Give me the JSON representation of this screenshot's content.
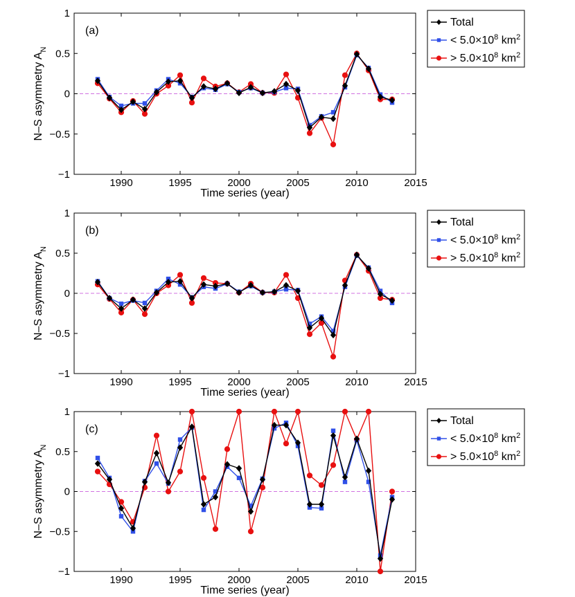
{
  "colors": {
    "total": "#000000",
    "small": "#3050e8",
    "large": "#e81010",
    "zero_line": "#d070e0"
  },
  "legend": {
    "total": "Total",
    "small_prefix": "< 5.0×10",
    "large_prefix": "> 5.0×10",
    "exponent": "8",
    "unit": " km",
    "unit_exponent": "2"
  },
  "chart_data": [
    {
      "type": "line",
      "panel": "(a)",
      "xlabel": "Time series (year)",
      "ylabel": "N–S asymmetry A",
      "ylabel_sub": "N",
      "xlim": [
        1986,
        2015
      ],
      "ylim": [
        -1,
        1
      ],
      "xticks": [
        1990,
        1995,
        2000,
        2005,
        2010,
        2015
      ],
      "yticks": [
        -1,
        -0.5,
        0,
        0.5,
        1
      ],
      "zero_line": true,
      "grid": false,
      "legend_placement": "outside-right",
      "x": [
        1988,
        1989,
        1990,
        1991,
        1992,
        1993,
        1994,
        1995,
        1996,
        1997,
        1998,
        1999,
        2000,
        2001,
        2002,
        2003,
        2004,
        2005,
        2006,
        2007,
        2008,
        2009,
        2010,
        2011,
        2012,
        2013
      ],
      "series": [
        {
          "name": "Total",
          "key": "total",
          "values": [
            0.16,
            -0.05,
            -0.2,
            -0.1,
            -0.19,
            0.02,
            0.15,
            0.16,
            -0.05,
            0.09,
            0.06,
            0.13,
            0.01,
            0.08,
            0.01,
            0.03,
            0.12,
            0.04,
            -0.42,
            -0.29,
            -0.31,
            0.1,
            0.49,
            0.31,
            -0.04,
            -0.08
          ]
        },
        {
          "name": "< 5.0×10^8 km^2",
          "key": "small",
          "values": [
            0.18,
            -0.04,
            -0.15,
            -0.12,
            -0.12,
            0.04,
            0.18,
            0.13,
            -0.04,
            0.07,
            0.05,
            0.12,
            0.02,
            0.07,
            0.01,
            0.02,
            0.07,
            0.06,
            -0.39,
            -0.28,
            -0.23,
            0.08,
            0.48,
            0.32,
            -0.01,
            -0.11
          ]
        },
        {
          "name": "> 5.0×10^8 km^2",
          "key": "large",
          "values": [
            0.13,
            -0.06,
            -0.23,
            -0.09,
            -0.25,
            0.0,
            0.1,
            0.23,
            -0.11,
            0.19,
            0.09,
            0.13,
            0.02,
            0.12,
            0.01,
            0.01,
            0.24,
            -0.05,
            -0.49,
            -0.3,
            -0.63,
            0.23,
            0.5,
            0.29,
            -0.07,
            -0.07
          ]
        }
      ]
    },
    {
      "type": "line",
      "panel": "(b)",
      "xlabel": "Time series (year)",
      "ylabel": "N–S asymmetry A",
      "ylabel_sub": "N",
      "xlim": [
        1986,
        2015
      ],
      "ylim": [
        -1,
        1
      ],
      "xticks": [
        1990,
        1995,
        2000,
        2005,
        2010,
        2015
      ],
      "yticks": [
        -1,
        -0.5,
        0,
        0.5,
        1
      ],
      "zero_line": true,
      "grid": false,
      "legend_placement": "outside-right",
      "x": [
        1988,
        1989,
        1990,
        1991,
        1992,
        1993,
        1994,
        1995,
        1996,
        1997,
        1998,
        1999,
        2000,
        2001,
        2002,
        2003,
        2004,
        2005,
        2006,
        2007,
        2008,
        2009,
        2010,
        2011,
        2012,
        2013
      ],
      "series": [
        {
          "name": "Total",
          "key": "total",
          "values": [
            0.14,
            -0.06,
            -0.19,
            -0.08,
            -0.19,
            0.01,
            0.14,
            0.15,
            -0.06,
            0.11,
            0.09,
            0.12,
            0.01,
            0.1,
            0.01,
            0.02,
            0.1,
            0.03,
            -0.43,
            -0.31,
            -0.52,
            0.1,
            0.48,
            0.31,
            -0.01,
            -0.09
          ]
        },
        {
          "name": "< 5.0×10^8 km^2",
          "key": "small",
          "values": [
            0.15,
            -0.06,
            -0.13,
            -0.09,
            -0.12,
            0.03,
            0.18,
            0.11,
            -0.05,
            0.08,
            0.06,
            0.12,
            0.02,
            0.09,
            0.01,
            0.02,
            0.05,
            0.04,
            -0.38,
            -0.29,
            -0.47,
            0.08,
            0.47,
            0.32,
            0.03,
            -0.12
          ]
        },
        {
          "name": "> 5.0×10^8 km^2",
          "key": "large",
          "values": [
            0.11,
            -0.07,
            -0.24,
            -0.08,
            -0.26,
            0.0,
            0.1,
            0.23,
            -0.12,
            0.19,
            0.13,
            0.12,
            0.01,
            0.12,
            0.01,
            0.01,
            0.23,
            -0.06,
            -0.51,
            -0.37,
            -0.79,
            0.16,
            0.48,
            0.28,
            -0.06,
            -0.08
          ]
        }
      ]
    },
    {
      "type": "line",
      "panel": "(c)",
      "xlabel": "Time series (year)",
      "ylabel": "N–S asymmetry A",
      "ylabel_sub": "N",
      "xlim": [
        1986,
        2015
      ],
      "ylim": [
        -1,
        1
      ],
      "xticks": [
        1990,
        1995,
        2000,
        2005,
        2010,
        2015
      ],
      "yticks": [
        -1,
        -0.5,
        0,
        0.5,
        1
      ],
      "zero_line": true,
      "grid": false,
      "legend_placement": "outside-right",
      "x": [
        1988,
        1989,
        1990,
        1991,
        1992,
        1993,
        1994,
        1995,
        1996,
        1997,
        1998,
        1999,
        2000,
        2001,
        2002,
        2003,
        2004,
        2005,
        2006,
        2007,
        2008,
        2009,
        2010,
        2011,
        2012,
        2013
      ],
      "series": [
        {
          "name": "Total",
          "key": "total",
          "values": [
            0.35,
            0.15,
            -0.21,
            -0.46,
            0.12,
            0.48,
            0.11,
            0.55,
            0.81,
            -0.16,
            -0.07,
            0.34,
            0.29,
            -0.25,
            0.15,
            0.83,
            0.83,
            0.61,
            -0.16,
            -0.16,
            0.7,
            0.18,
            0.66,
            0.26,
            -0.84,
            -0.1
          ]
        },
        {
          "name": "< 5.0×10^8 km^2",
          "key": "small",
          "values": [
            0.42,
            0.17,
            -0.31,
            -0.5,
            0.13,
            0.35,
            0.1,
            0.65,
            0.8,
            -0.23,
            0.0,
            0.31,
            0.17,
            -0.18,
            0.16,
            0.79,
            0.86,
            0.57,
            -0.2,
            -0.21,
            0.76,
            0.12,
            0.64,
            0.12,
            -0.8,
            -0.07
          ]
        },
        {
          "name": "> 5.0×10^8 km^2",
          "key": "large",
          "values": [
            0.25,
            0.09,
            -0.13,
            -0.38,
            0.05,
            0.7,
            0.0,
            0.25,
            1.0,
            0.17,
            -0.47,
            0.53,
            1.0,
            -0.5,
            0.05,
            1.0,
            0.6,
            1.0,
            0.2,
            0.08,
            0.33,
            1.0,
            0.65,
            1.0,
            -1.0,
            0.0
          ]
        }
      ]
    }
  ]
}
